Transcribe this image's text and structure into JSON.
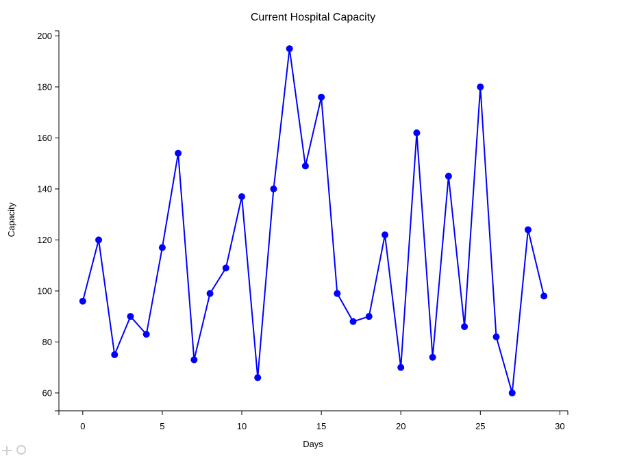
{
  "chart_data": {
    "type": "line",
    "title": "Current Hospital Capacity",
    "xlabel": "Days",
    "ylabel": "Capacity",
    "xlim": [
      -1.5,
      30.5
    ],
    "ylim": [
      53,
      202
    ],
    "x_ticks": [
      0,
      5,
      10,
      15,
      20,
      25,
      30
    ],
    "y_ticks": [
      60,
      80,
      100,
      120,
      140,
      160,
      180,
      200
    ],
    "grid": false,
    "legend": "none",
    "series": [
      {
        "color": "#0000ff",
        "x": [
          0,
          1,
          2,
          3,
          4,
          5,
          6,
          7,
          8,
          9,
          10,
          11,
          12,
          13,
          14,
          15,
          16,
          17,
          18,
          19,
          20,
          21,
          22,
          23,
          24,
          25,
          26,
          27,
          28,
          29
        ],
        "y": [
          96,
          120,
          75,
          90,
          83,
          117,
          154,
          73,
          99,
          109,
          137,
          66,
          140,
          195,
          149,
          176,
          99,
          88,
          90,
          122,
          70,
          162,
          74,
          145,
          86,
          180,
          82,
          60,
          124,
          98
        ]
      }
    ]
  },
  "toolbar": {
    "icons": [
      "move-icon",
      "zoom-icon"
    ]
  }
}
